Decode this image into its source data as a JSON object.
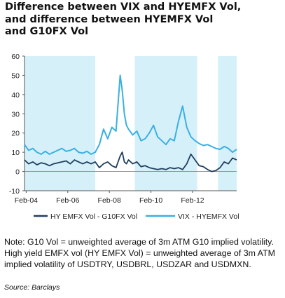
{
  "title_lines": [
    "Difference between VIX and HYEMFX Vol,",
    "and difference between HYEMFX Vol",
    "and G10FX Vol"
  ],
  "note": "Note: G10 Vol = unweighted average of 3m ATM G10 implied volatility. High yield EMFX vol (HY EMFX Vol) =   unweighted average of 3m ATM implied volatility of USDTRY, USDBRL, USDZAR and USDMXN.",
  "source": "Source: Barclays",
  "colors": {
    "hy_line": "#1f3f5f",
    "vix_line": "#3ab0e2",
    "shade": "#d6f0fa",
    "axis": "#555555"
  },
  "chart_data": {
    "type": "line",
    "title": "",
    "xlabel": "",
    "ylabel": "",
    "ylim": [
      -10,
      60
    ],
    "yticks": [
      -10,
      0,
      10,
      20,
      30,
      40,
      50,
      60
    ],
    "x_tick_labels": [
      "Feb-04",
      "Feb-06",
      "Feb-08",
      "Feb-10",
      "Feb-12"
    ],
    "x_tick_positions": [
      2004.08,
      2006.08,
      2008.08,
      2010.08,
      2012.08
    ],
    "xlim": [
      2004.0,
      2014.2
    ],
    "grid": false,
    "legend_position": "bottom",
    "shaded_periods": [
      [
        2004.0,
        2007.4
      ],
      [
        2009.3,
        2012.3
      ],
      [
        2013.3,
        2014.2
      ]
    ],
    "series": [
      {
        "name": "HY EMFX Vol - G10FX Vol",
        "color": "#1f3f5f",
        "x": [
          2004.0,
          2004.2,
          2004.4,
          2004.6,
          2004.8,
          2005.0,
          2005.2,
          2005.4,
          2005.6,
          2005.8,
          2006.0,
          2006.2,
          2006.4,
          2006.6,
          2006.8,
          2007.0,
          2007.2,
          2007.4,
          2007.6,
          2007.8,
          2008.0,
          2008.2,
          2008.4,
          2008.6,
          2008.7,
          2008.8,
          2008.9,
          2009.0,
          2009.2,
          2009.4,
          2009.6,
          2009.8,
          2010.0,
          2010.2,
          2010.4,
          2010.6,
          2010.8,
          2011.0,
          2011.2,
          2011.4,
          2011.6,
          2011.8,
          2012.0,
          2012.2,
          2012.4,
          2012.6,
          2012.8,
          2013.0,
          2013.2,
          2013.4,
          2013.6,
          2013.8,
          2014.0,
          2014.2
        ],
        "y": [
          6,
          4,
          5,
          3.5,
          4.5,
          4,
          3,
          4,
          4.5,
          5,
          5.5,
          4,
          6,
          5,
          4,
          5,
          4,
          5,
          2,
          4,
          5,
          3,
          2,
          8,
          10,
          5,
          4,
          6,
          4,
          5,
          2.5,
          3,
          2,
          1.5,
          1,
          1.5,
          1,
          2,
          1.5,
          2,
          1,
          4,
          9,
          6,
          3,
          2.5,
          1,
          0,
          0.5,
          2,
          5,
          4,
          7,
          6
        ]
      },
      {
        "name": "VIX - HYEMFX Vol",
        "color": "#3ab0e2",
        "x": [
          2004.0,
          2004.2,
          2004.4,
          2004.6,
          2004.8,
          2005.0,
          2005.2,
          2005.4,
          2005.6,
          2005.8,
          2006.0,
          2006.2,
          2006.4,
          2006.6,
          2006.8,
          2007.0,
          2007.2,
          2007.4,
          2007.6,
          2007.8,
          2008.0,
          2008.2,
          2008.4,
          2008.6,
          2008.7,
          2008.8,
          2008.9,
          2009.0,
          2009.2,
          2009.4,
          2009.6,
          2009.8,
          2010.0,
          2010.2,
          2010.4,
          2010.6,
          2010.8,
          2011.0,
          2011.2,
          2011.4,
          2011.6,
          2011.8,
          2012.0,
          2012.2,
          2012.4,
          2012.6,
          2012.8,
          2013.0,
          2013.2,
          2013.4,
          2013.6,
          2013.8,
          2014.0,
          2014.2
        ],
        "y": [
          14,
          11,
          12,
          10,
          9,
          10.5,
          9,
          10,
          11,
          12,
          10.5,
          11,
          12,
          10,
          9.5,
          10.5,
          9,
          10,
          14,
          22,
          17,
          23,
          21,
          50,
          42,
          30,
          24,
          22,
          19,
          21,
          16,
          17,
          20,
          24,
          18,
          16,
          14,
          17,
          16,
          26,
          34,
          23,
          18,
          16,
          14.5,
          13.5,
          14,
          13,
          12,
          11.5,
          13,
          12,
          10,
          11.5
        ]
      }
    ]
  }
}
